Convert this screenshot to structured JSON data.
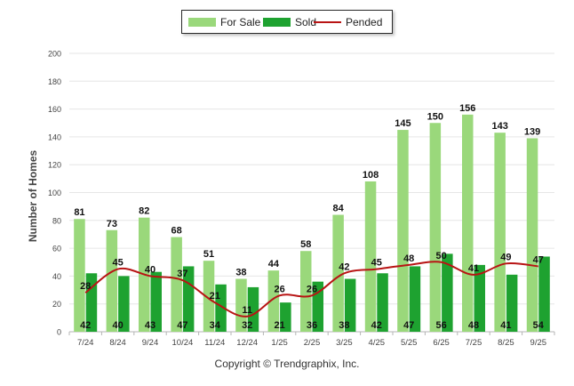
{
  "chart_data": {
    "type": "bar",
    "title": "",
    "xlabel": "",
    "ylabel": "Number of Homes",
    "ylim": [
      0,
      200
    ],
    "yticks": [
      0,
      20,
      40,
      60,
      80,
      100,
      120,
      140,
      160,
      180,
      200
    ],
    "categories": [
      "7/24",
      "8/24",
      "9/24",
      "10/24",
      "11/24",
      "12/24",
      "1/25",
      "2/25",
      "3/25",
      "4/25",
      "5/25",
      "6/25",
      "7/25",
      "8/25",
      "9/25"
    ],
    "series": [
      {
        "name": "For Sale",
        "kind": "bar",
        "color": "#9ad87b",
        "values": [
          81,
          73,
          82,
          68,
          51,
          38,
          44,
          58,
          84,
          108,
          145,
          150,
          156,
          143,
          139
        ]
      },
      {
        "name": "Sold",
        "kind": "bar",
        "color": "#1ea230",
        "values": [
          42,
          40,
          43,
          47,
          34,
          32,
          21,
          36,
          38,
          42,
          47,
          56,
          48,
          41,
          54
        ]
      },
      {
        "name": "Pended",
        "kind": "line",
        "color": "#b81414",
        "values": [
          28,
          45,
          40,
          37,
          21,
          11,
          26,
          26,
          42,
          45,
          48,
          50,
          41,
          49,
          47
        ]
      }
    ],
    "legend_position": "top-center"
  },
  "legend": {
    "for_sale": "For Sale",
    "sold": "Sold",
    "pended": "Pended"
  },
  "copyright": "Copyright © Trendgraphix, Inc."
}
